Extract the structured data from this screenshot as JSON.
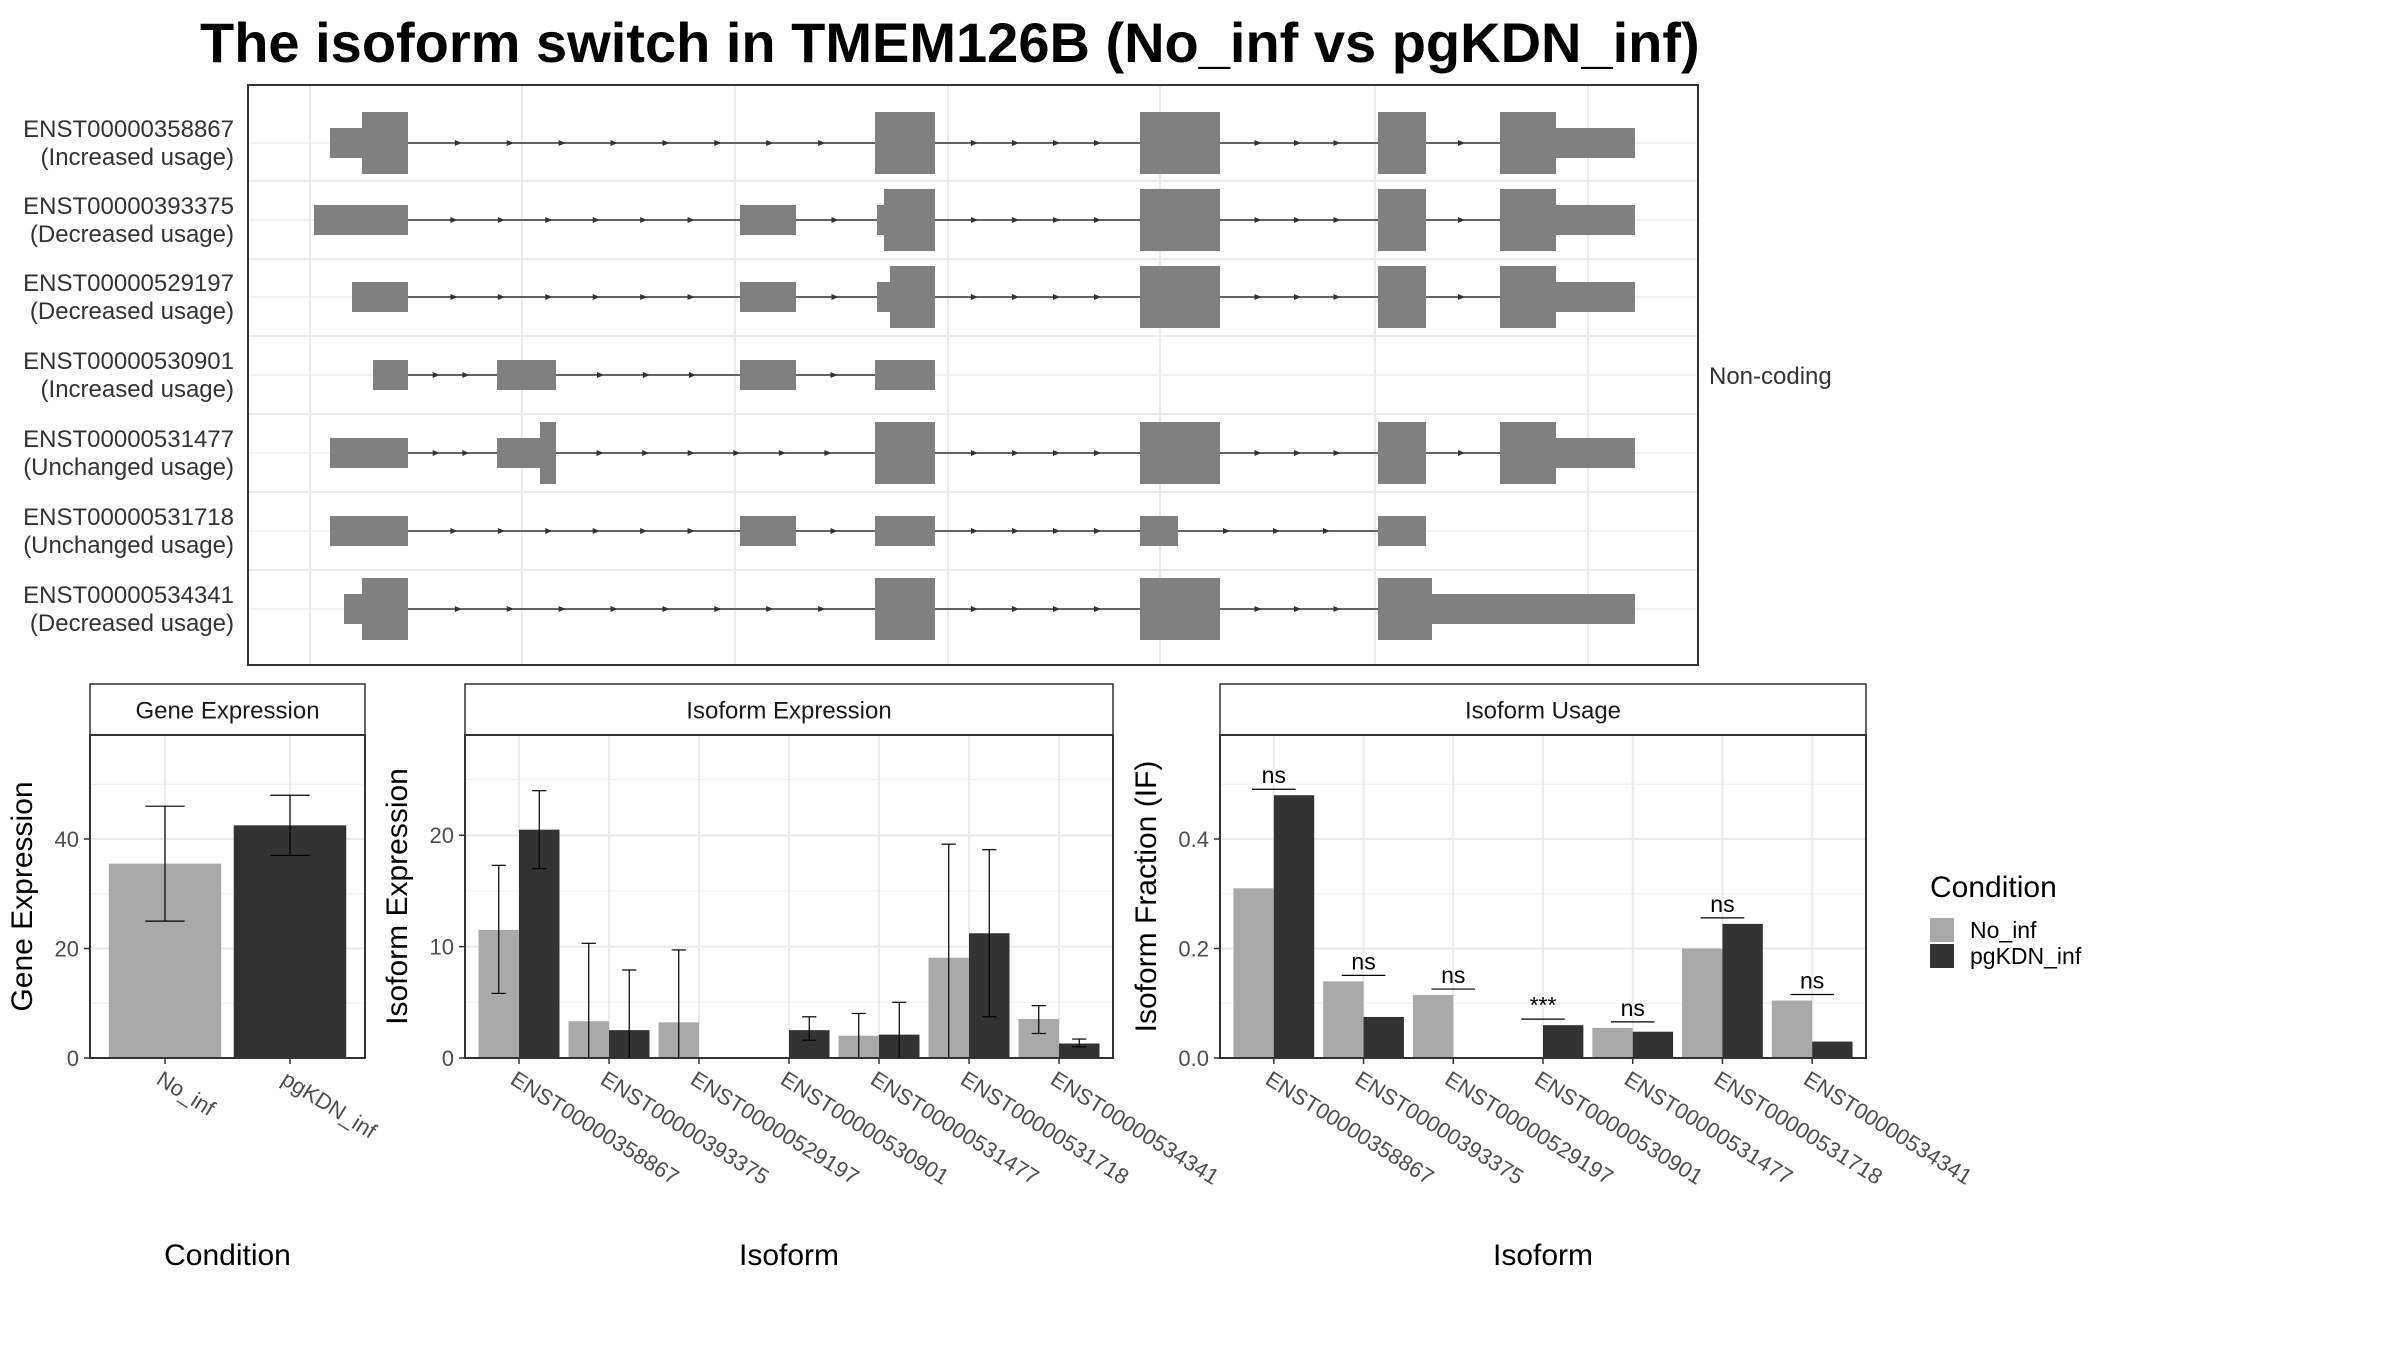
{
  "title": "The isoform switch in TMEM126B (No_inf vs pgKDN_inf)",
  "colors": {
    "no_inf": "#a9a9a9",
    "pgkdn_inf": "#333333",
    "exon": "#808080"
  },
  "chart_data": [
    {
      "type": "gene-structure",
      "side_label": "Non-coding",
      "isoforms": [
        {
          "id": "ENST00000358867",
          "usage": "(Increased usage)"
        },
        {
          "id": "ENST00000393375",
          "usage": "(Decreased usage)"
        },
        {
          "id": "ENST00000529197",
          "usage": "(Decreased usage)"
        },
        {
          "id": "ENST00000530901",
          "usage": "(Increased usage)"
        },
        {
          "id": "ENST00000531477",
          "usage": "(Unchanged usage)"
        },
        {
          "id": "ENST00000531718",
          "usage": "(Unchanged usage)"
        },
        {
          "id": "ENST00000534341",
          "usage": "(Decreased usage)"
        }
      ]
    },
    {
      "type": "bar",
      "title": "Gene Expression",
      "xlabel": "Condition",
      "ylabel": "Gene Expression",
      "categories": [
        "No_inf",
        "pgKDN_inf"
      ],
      "values": [
        35.5,
        42.5
      ],
      "error_low": [
        25,
        37
      ],
      "error_high": [
        46,
        48
      ],
      "ylim": [
        0,
        59
      ],
      "yticks": [
        0,
        20,
        40
      ]
    },
    {
      "type": "bar",
      "title": "Isoform Expression",
      "xlabel": "Isoform",
      "ylabel": "Isoform Expression",
      "categories": [
        "ENST00000358867",
        "ENST00000393375",
        "ENST00000529197",
        "ENST00000530901",
        "ENST00000531477",
        "ENST00000531718",
        "ENST00000534341"
      ],
      "series": [
        {
          "name": "No_inf",
          "values": [
            11.5,
            3.3,
            3.2,
            0,
            2.0,
            9.0,
            3.5
          ],
          "error_low": [
            5.8,
            0,
            0,
            0,
            0,
            0,
            2.2
          ],
          "error_high": [
            17.3,
            10.3,
            9.7,
            0,
            4.0,
            19.2,
            4.7
          ]
        },
        {
          "name": "pgKDN_inf",
          "values": [
            20.5,
            2.5,
            0,
            2.5,
            2.1,
            11.2,
            1.3
          ],
          "error_low": [
            17.0,
            0,
            0,
            1.6,
            0,
            3.7,
            1.0
          ],
          "error_high": [
            24.0,
            7.9,
            0,
            3.7,
            5.0,
            18.7,
            1.7
          ]
        }
      ],
      "ylim": [
        0,
        29
      ],
      "yticks": [
        0,
        10,
        20
      ]
    },
    {
      "type": "bar",
      "title": "Isoform Usage",
      "xlabel": "Isoform",
      "ylabel": "Isoform Fraction (IF)",
      "categories": [
        "ENST00000358867",
        "ENST00000393375",
        "ENST00000529197",
        "ENST00000530901",
        "ENST00000531477",
        "ENST00000531718",
        "ENST00000534341"
      ],
      "series": [
        {
          "name": "No_inf",
          "values": [
            0.31,
            0.14,
            0.115,
            0,
            0.055,
            0.2,
            0.105
          ]
        },
        {
          "name": "pgKDN_inf",
          "values": [
            0.48,
            0.075,
            0,
            0.06,
            0.048,
            0.245,
            0.03
          ]
        }
      ],
      "significance": [
        "ns",
        "ns",
        "ns",
        "***",
        "ns",
        "ns",
        "ns"
      ],
      "ylim": [
        0,
        0.59
      ],
      "yticks": [
        0.0,
        0.2,
        0.4
      ],
      "ytick_labels": [
        "0.0",
        "0.2",
        "0.4"
      ]
    }
  ],
  "legend": {
    "title": "Condition",
    "items": [
      {
        "label": "No_inf",
        "color": "#a9a9a9"
      },
      {
        "label": "pgKDN_inf",
        "color": "#333333"
      }
    ]
  }
}
